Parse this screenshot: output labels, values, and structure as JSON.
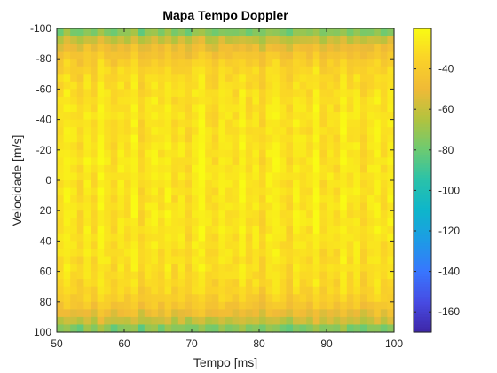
{
  "chart_data": {
    "type": "heatmap",
    "title": "Mapa Tempo Doppler",
    "xlabel": "Tempo [ms]",
    "ylabel": "Velocidade [m/s]",
    "xlim": [
      50,
      100
    ],
    "ylim": [
      -100,
      100
    ],
    "y_direction": "reversed",
    "x_ticks": [
      "50",
      "60",
      "70",
      "80",
      "90",
      "100"
    ],
    "y_ticks": [
      "-100",
      "-80",
      "-60",
      "-40",
      "-20",
      "0",
      "20",
      "40",
      "60",
      "80",
      "100"
    ],
    "colormap": "parula",
    "colorbar": {
      "range": [
        -170,
        -20
      ],
      "ticks": [
        "-40",
        "-60",
        "-80",
        "-100",
        "-120",
        "-140",
        "-160"
      ],
      "tick_values": [
        -40,
        -60,
        -80,
        -100,
        -120,
        -140,
        -160
      ]
    },
    "grid": false,
    "time_bins": 50,
    "velocity_bins": 40,
    "column_offsets": [
      -2,
      4,
      0,
      -5,
      3,
      -3,
      6,
      1,
      -4,
      2,
      -1,
      5,
      -6,
      0,
      3,
      -2,
      4,
      -3,
      1,
      -5,
      2,
      6,
      -1,
      -4,
      3,
      0,
      -2,
      5,
      -3,
      1,
      -6,
      2,
      4,
      -1,
      -5,
      3,
      0,
      -2,
      6,
      -4,
      1,
      -3,
      5,
      -1,
      2,
      -5,
      0,
      4,
      -2,
      3
    ]
  }
}
